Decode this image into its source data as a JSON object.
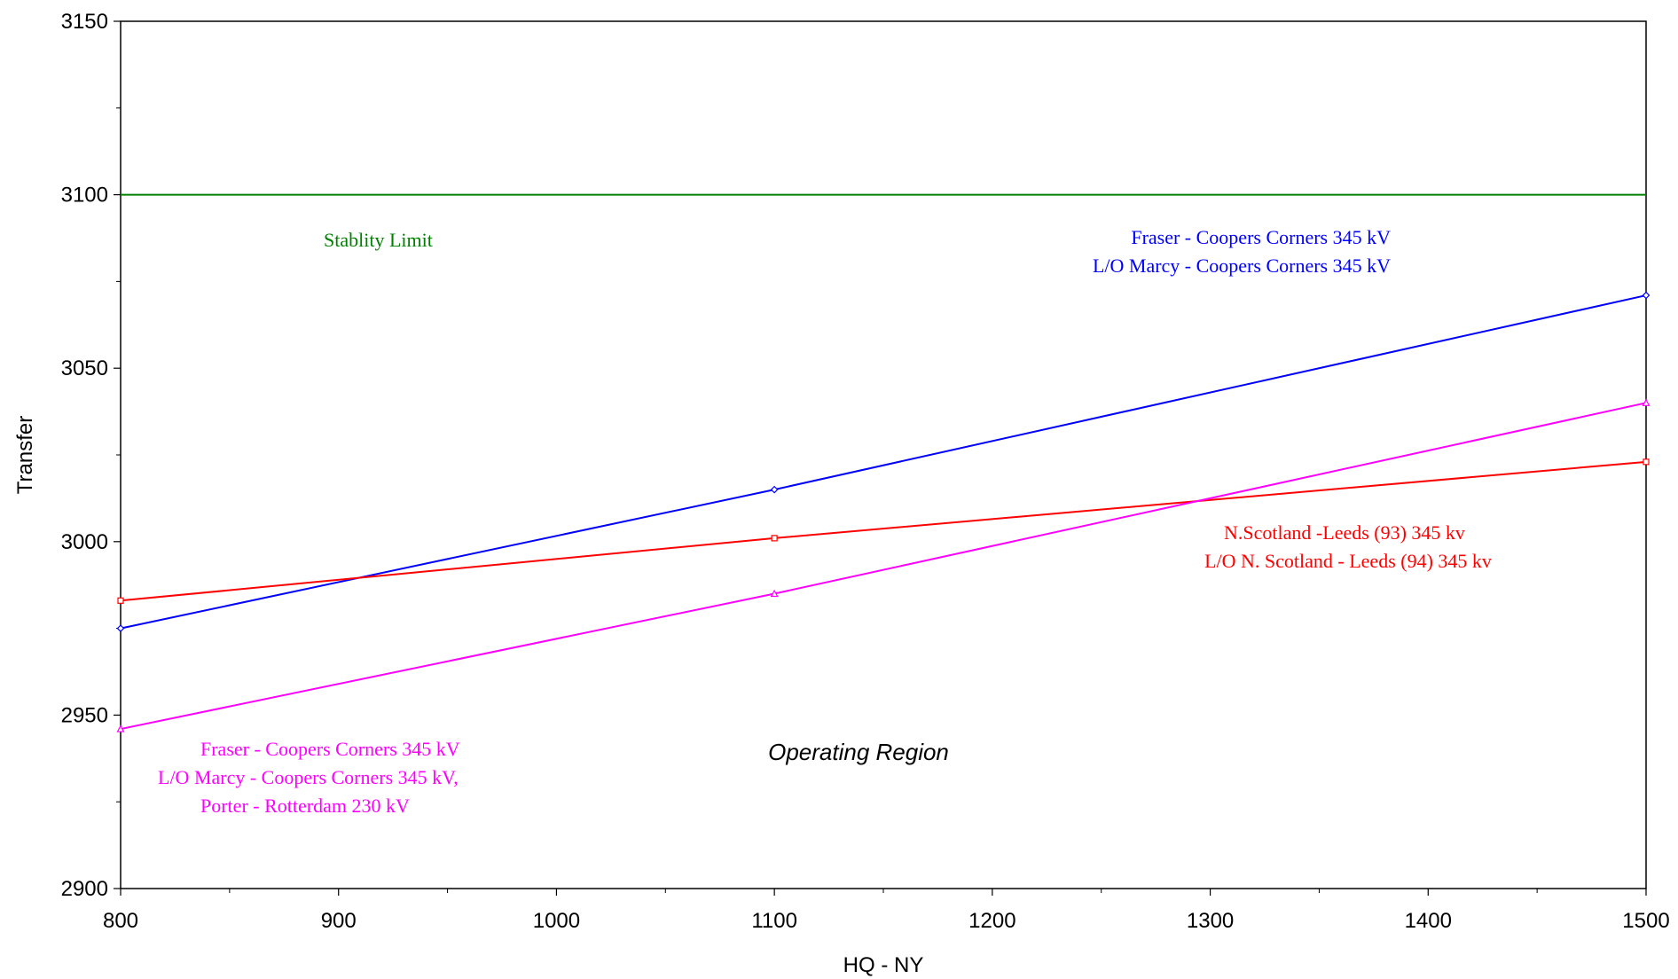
{
  "chart_data": {
    "type": "line",
    "title": "",
    "xlabel": "HQ - NY",
    "ylabel": "Transfer",
    "xlim": [
      800,
      1500
    ],
    "ylim": [
      2900,
      3150
    ],
    "x_ticks": [
      800,
      900,
      1000,
      1100,
      1200,
      1300,
      1400,
      1500
    ],
    "y_ticks": [
      2900,
      2950,
      3000,
      3050,
      3100,
      3150
    ],
    "x_tick_labels": [
      "800",
      "900",
      "1000",
      "1100",
      "1200",
      "1300",
      "1400",
      "1500"
    ],
    "y_tick_labels": [
      "2900",
      "2950",
      "3000",
      "3050",
      "3100",
      "3150"
    ],
    "grid": false,
    "series": [
      {
        "key": "stability",
        "color": "#008000",
        "marker": "none",
        "x": [
          800,
          1500
        ],
        "y": [
          3100,
          3100
        ]
      },
      {
        "key": "blue",
        "color": "#0000ff",
        "marker": "diamond",
        "x": [
          800,
          1100,
          1500
        ],
        "y": [
          2975,
          3015,
          3071
        ]
      },
      {
        "key": "red",
        "color": "#ff0000",
        "marker": "square",
        "x": [
          800,
          1100,
          1500
        ],
        "y": [
          2983,
          3001,
          3023
        ]
      },
      {
        "key": "magenta",
        "color": "#ff00ff",
        "marker": "triangle",
        "x": [
          800,
          1100,
          1500
        ],
        "y": [
          2946,
          2985,
          3040
        ]
      }
    ],
    "annotations": [
      {
        "key": "stability_label",
        "text": "Stablity Limit",
        "color": "#008000"
      },
      {
        "key": "blue_line1",
        "text": "Fraser - Coopers Corners 345 kV",
        "color": "#0000ff"
      },
      {
        "key": "blue_line2",
        "text": "L/O Marcy - Coopers Corners 345 kV",
        "color": "#0000ff"
      },
      {
        "key": "red_line1",
        "text": "N.Scotland -Leeds (93) 345 kv",
        "color": "#ff0000"
      },
      {
        "key": "red_line2",
        "text": "L/O N. Scotland - Leeds (94) 345 kv",
        "color": "#ff0000"
      },
      {
        "key": "magenta_line1",
        "text": "Fraser - Coopers Corners 345 kV",
        "color": "#ff00ff"
      },
      {
        "key": "magenta_line2",
        "text": "L/O Marcy - Coopers Corners 345 kV,",
        "color": "#ff00ff"
      },
      {
        "key": "magenta_line3",
        "text": "Porter - Rotterdam 230 kV",
        "color": "#ff00ff"
      },
      {
        "key": "region_label",
        "text": "Operating Region",
        "color": "#000000"
      }
    ]
  }
}
